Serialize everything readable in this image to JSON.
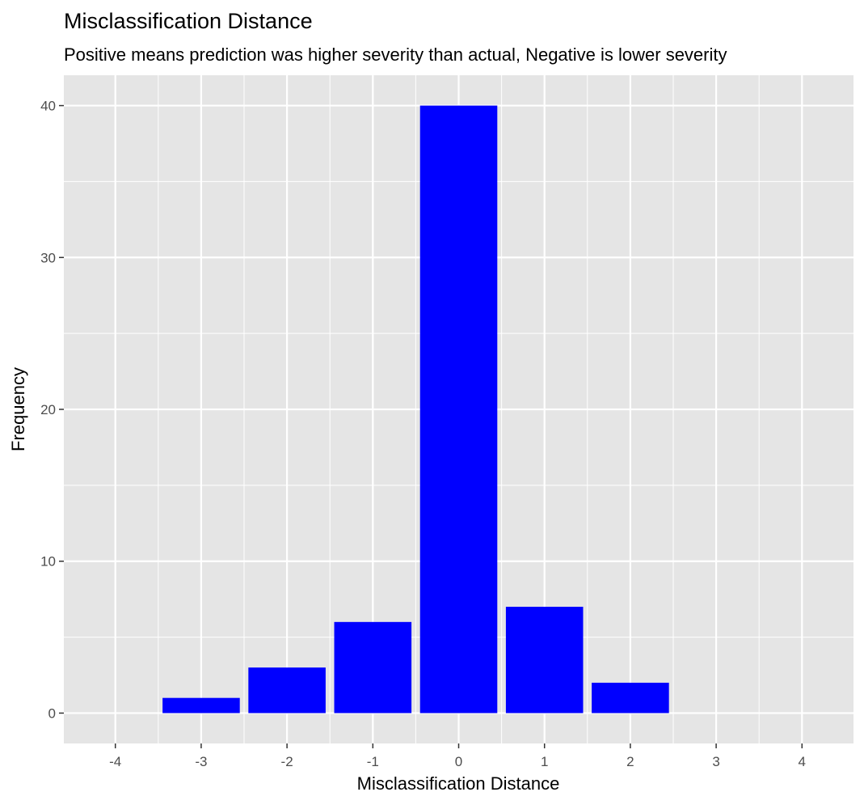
{
  "chart_data": {
    "type": "bar",
    "title": "Misclassification Distance",
    "subtitle": "Positive means prediction was higher severity than actual, Negative is lower severity",
    "xlabel": "Misclassification Distance",
    "ylabel": "Frequency",
    "categories": [
      -3,
      -2,
      -1,
      0,
      1,
      2
    ],
    "values": [
      1,
      3,
      6,
      40,
      7,
      2
    ],
    "xlim": [
      -4.6,
      4.6
    ],
    "ylim": [
      -2,
      42
    ],
    "x_ticks": [
      -4,
      -3,
      -2,
      -1,
      0,
      1,
      2,
      3,
      4
    ],
    "x_tick_labels": [
      "-4",
      "-3",
      "-2",
      "-1",
      "0",
      "1",
      "2",
      "3",
      "4"
    ],
    "y_ticks": [
      0,
      10,
      20,
      30,
      40
    ],
    "y_tick_labels": [
      "0",
      "10",
      "20",
      "30",
      "40"
    ],
    "bar_width": 0.9,
    "bar_color": "#0000FF",
    "panel_background": "#E5E5E5",
    "grid_color": "#FFFFFF",
    "grid": true,
    "legend": "none"
  }
}
